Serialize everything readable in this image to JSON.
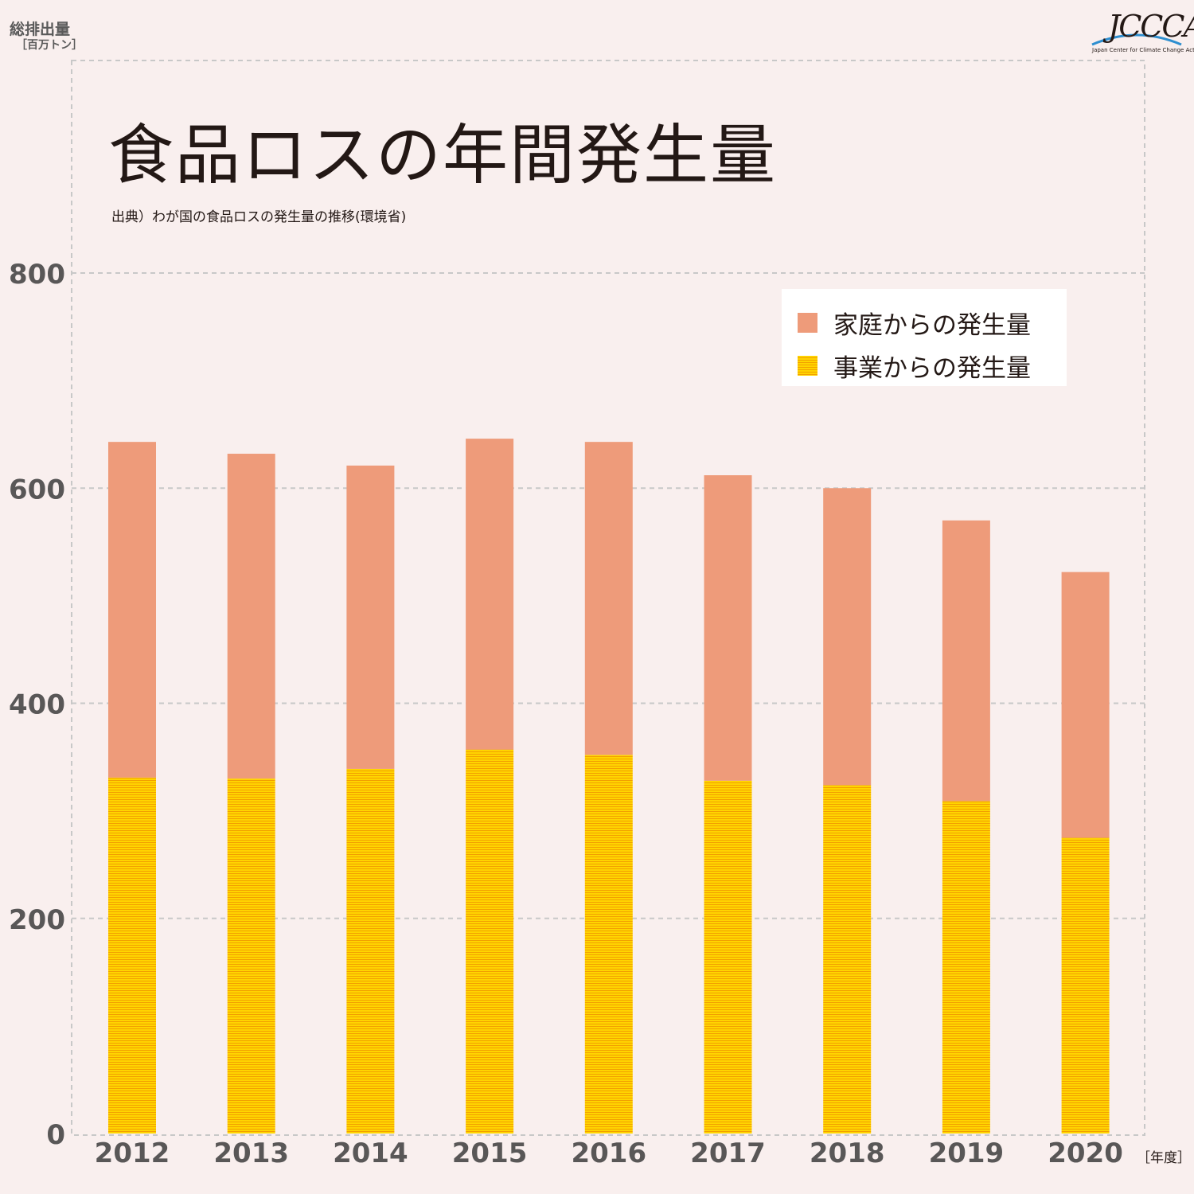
{
  "header": {
    "y_axis_label": "総排出量",
    "y_axis_unit": "［百万トン］",
    "title": "食品ロスの年間発生量",
    "source": "出典）わが国の食品ロスの発生量の推移(環境省)",
    "x_axis_unit": "［年度］"
  },
  "logo": {
    "text": "JCCCA",
    "subtitle": "Japan Center for Climate Change Actions"
  },
  "legend": {
    "items": [
      {
        "label": "家庭からの発生量",
        "color": "#ee9b7a"
      },
      {
        "label": "事業からの発生量",
        "color": "#ffd400"
      }
    ]
  },
  "colors": {
    "background": "#f9efee",
    "household": "#ee9b7a",
    "business": "#ffd400",
    "business_stripe": "#f2a000",
    "grid": "#c8c8c8",
    "tick_text": "#595757"
  },
  "chart_data": {
    "type": "bar",
    "stacked": true,
    "categories": [
      "2012",
      "2013",
      "2014",
      "2015",
      "2016",
      "2017",
      "2018",
      "2019",
      "2020"
    ],
    "series": [
      {
        "name": "事業からの発生量",
        "values": [
          331,
          330,
          339,
          357,
          352,
          328,
          324,
          309,
          275
        ]
      },
      {
        "name": "家庭からの発生量",
        "values": [
          312,
          302,
          282,
          289,
          291,
          284,
          276,
          261,
          247
        ]
      }
    ],
    "title": "食品ロスの年間発生量",
    "xlabel": "［年度］",
    "ylabel": "総排出量",
    "ylim": [
      0,
      800
    ],
    "yticks": [
      0,
      200,
      400,
      600,
      800
    ],
    "grid": true,
    "legend_position": "top-right"
  }
}
